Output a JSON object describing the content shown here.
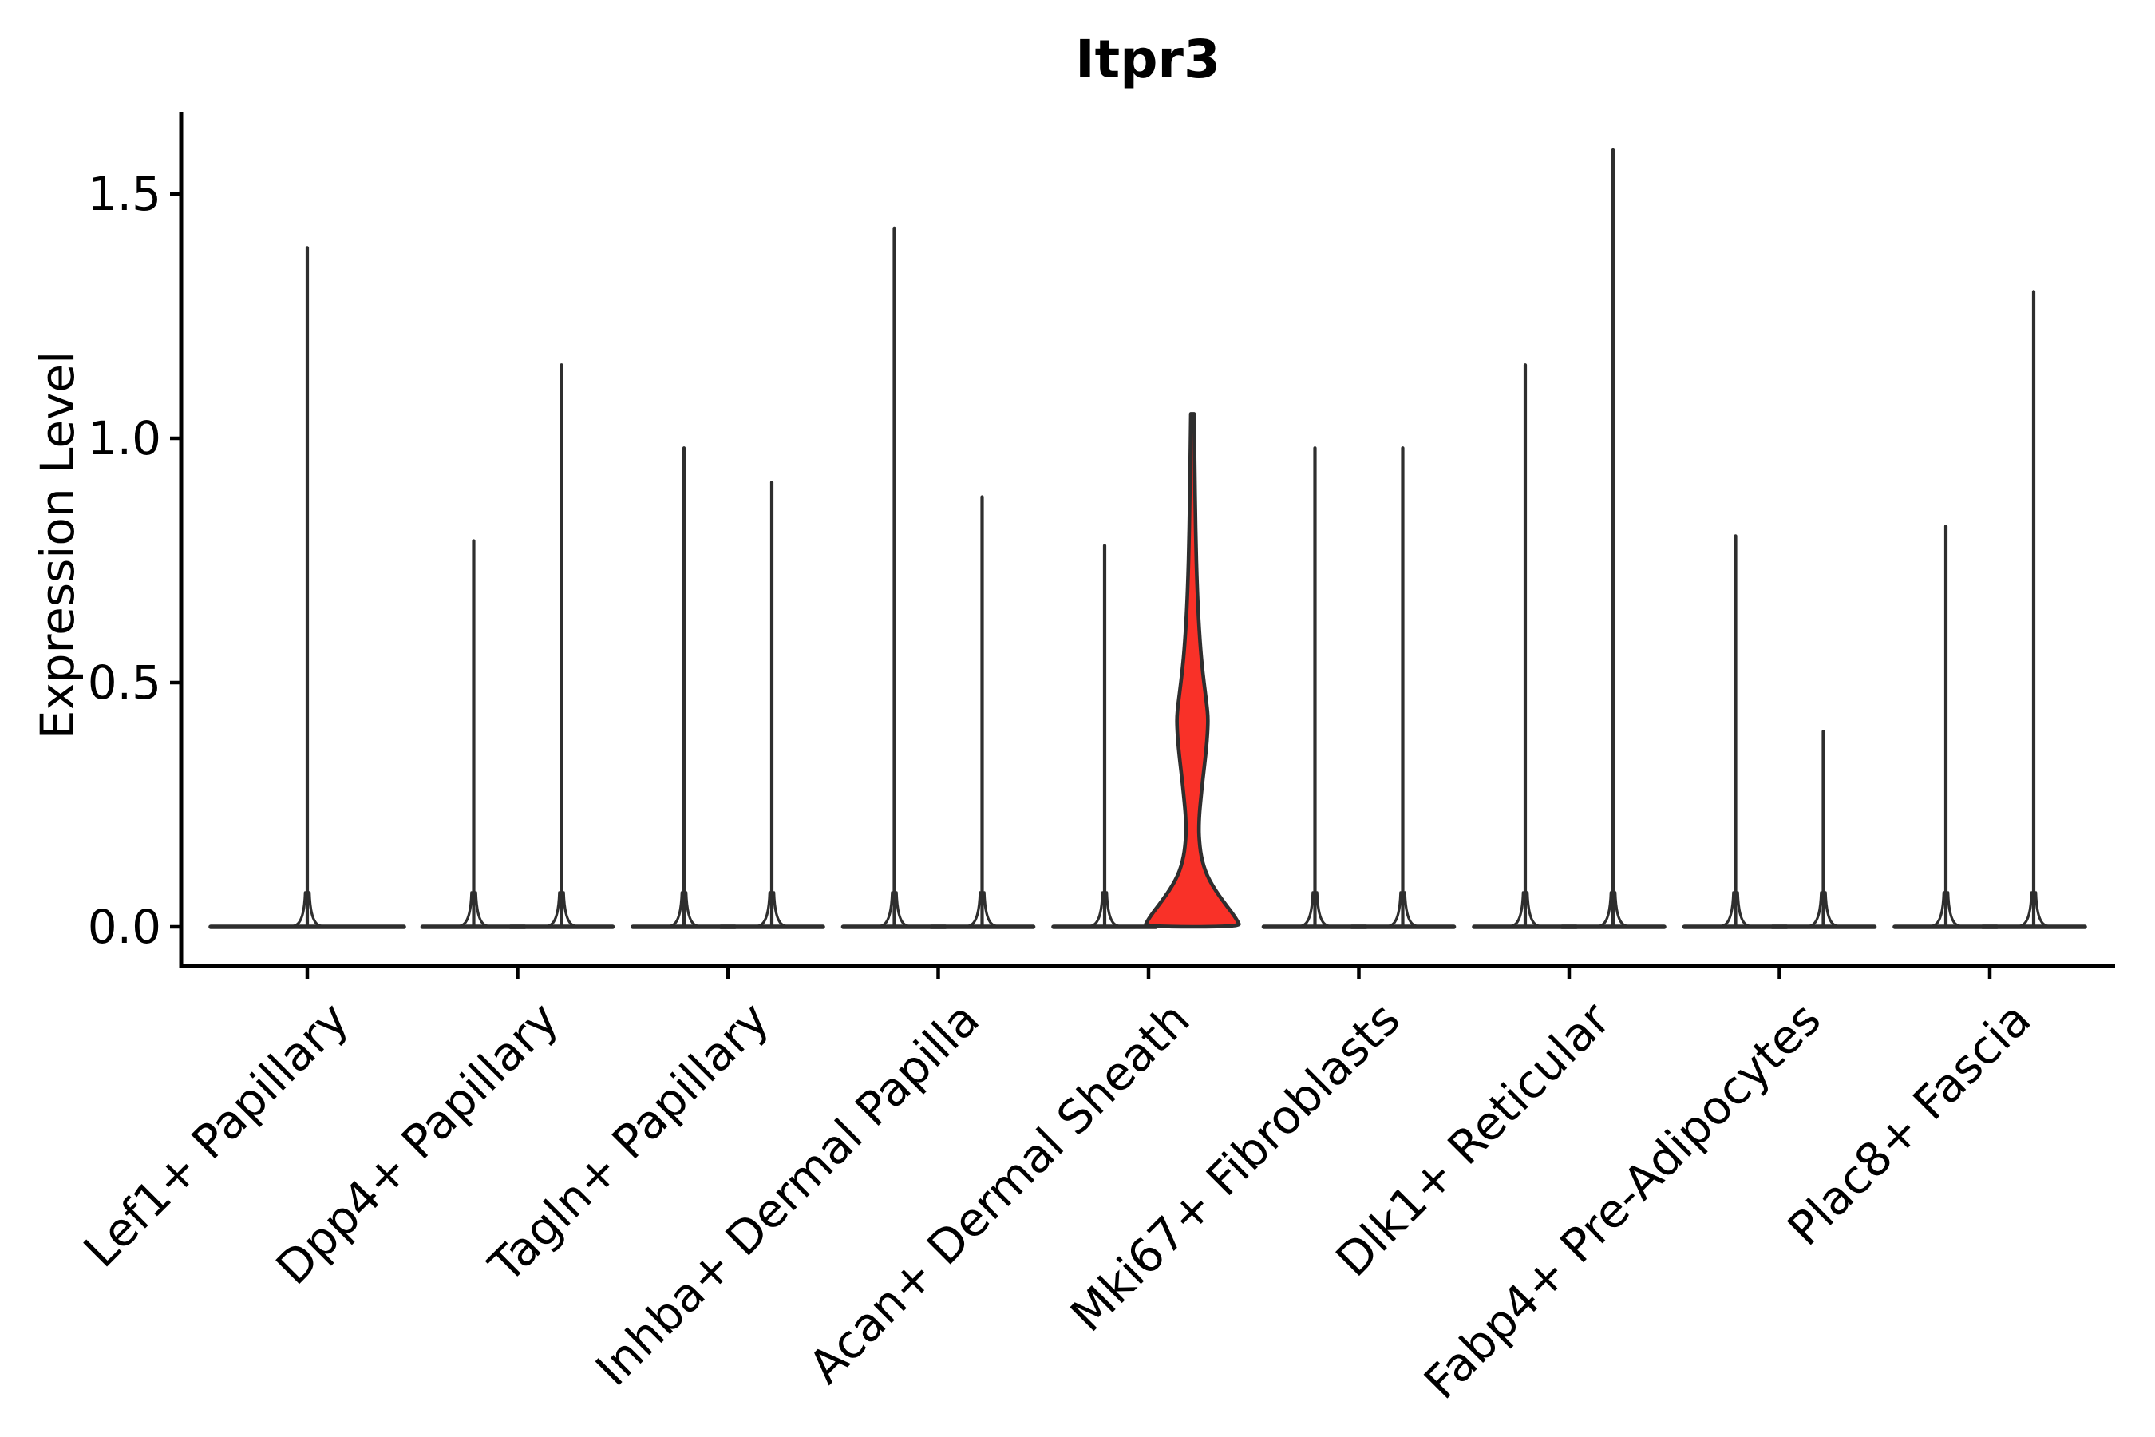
{
  "figure": {
    "title": "Itpr3"
  },
  "axes": {
    "ylabel": "Expression Level",
    "yticks": [
      {
        "label": "0.0",
        "value": 0.0
      },
      {
        "label": "0.5",
        "value": 0.5
      },
      {
        "label": "1.0",
        "value": 1.0
      },
      {
        "label": "1.5",
        "value": 1.5
      }
    ],
    "xlabels": [
      "Lef1+ Papillary",
      "Dpp4+ Papillary",
      "Tagln+ Papillary",
      "Inhba+ Dermal Papilla",
      "Acan+ Dermal Sheath",
      "Mki67+ Fibroblasts",
      "Dlk1+ Reticular",
      "Fabp4+ Pre-Adipocytes",
      "Plac8+ Fascia"
    ]
  },
  "colors": {
    "highlight_fill": "#f93128",
    "violin_line": "#2e2e2e",
    "axis": "#000000",
    "background": "#ffffff"
  },
  "chart_data": {
    "type": "violin",
    "title": "Itpr3",
    "xlabel": "",
    "ylabel": "Expression Level",
    "ylim": [
      0,
      1.67
    ],
    "ytick_values": [
      0,
      0.5,
      1.0,
      1.5
    ],
    "grid": false,
    "legend": "none",
    "categories": [
      "Lef1+ Papillary",
      "Dpp4+ Papillary",
      "Tagln+ Papillary",
      "Inhba+ Dermal Papilla",
      "Acan+ Dermal Sheath",
      "Mki67+ Fibroblasts",
      "Dlk1+ Reticular",
      "Fabp4+ Pre-Adipocytes",
      "Plac8+ Fascia"
    ],
    "violins": [
      {
        "category": "Lef1+ Papillary",
        "parts": [
          {
            "position": "center",
            "max_expression": 1.39,
            "highlight": false
          }
        ]
      },
      {
        "category": "Dpp4+ Papillary",
        "parts": [
          {
            "position": "left",
            "max_expression": 0.79,
            "highlight": false
          },
          {
            "position": "right",
            "max_expression": 1.15,
            "highlight": false
          }
        ]
      },
      {
        "category": "Tagln+ Papillary",
        "parts": [
          {
            "position": "left",
            "max_expression": 0.98,
            "highlight": false
          },
          {
            "position": "right",
            "max_expression": 0.91,
            "highlight": false
          }
        ]
      },
      {
        "category": "Inhba+ Dermal Papilla",
        "parts": [
          {
            "position": "left",
            "max_expression": 1.43,
            "highlight": false
          },
          {
            "position": "right",
            "max_expression": 0.88,
            "highlight": false
          }
        ]
      },
      {
        "category": "Acan+ Dermal Sheath",
        "parts": [
          {
            "position": "left",
            "max_expression": 0.78,
            "highlight": false
          },
          {
            "position": "right",
            "max_expression": 1.05,
            "highlight": true,
            "fill": "#f93128",
            "profile_value_halfwidth": [
              [
                1.05,
                2.0
              ],
              [
                0.99,
                2.5
              ],
              [
                0.92,
                3.0
              ],
              [
                0.85,
                3.6
              ],
              [
                0.78,
                4.4
              ],
              [
                0.72,
                5.4
              ],
              [
                0.66,
                6.8
              ],
              [
                0.61,
                8.4
              ],
              [
                0.56,
                10.6
              ],
              [
                0.52,
                13.0
              ],
              [
                0.48,
                16.0
              ],
              [
                0.45,
                18.3
              ],
              [
                0.43,
                19.4
              ],
              [
                0.41,
                19.3
              ],
              [
                0.38,
                18.2
              ],
              [
                0.35,
                16.4
              ],
              [
                0.32,
                14.3
              ],
              [
                0.29,
                12.2
              ],
              [
                0.26,
                10.4
              ],
              [
                0.24,
                9.2
              ],
              [
                0.22,
                8.4
              ],
              [
                0.2,
                8.1
              ],
              [
                0.185,
                8.3
              ],
              [
                0.165,
                9.3
              ],
              [
                0.145,
                11.0
              ],
              [
                0.125,
                14.0
              ],
              [
                0.105,
                18.5
              ],
              [
                0.085,
                25.0
              ],
              [
                0.065,
                33.0
              ],
              [
                0.045,
                42.0
              ],
              [
                0.028,
                50.0
              ],
              [
                0.012,
                56.5
              ],
              [
                0.0,
                60.0
              ]
            ]
          }
        ]
      },
      {
        "category": "Mki67+ Fibroblasts",
        "parts": [
          {
            "position": "left",
            "max_expression": 0.98,
            "highlight": false
          },
          {
            "position": "right",
            "max_expression": 0.98,
            "highlight": false
          }
        ]
      },
      {
        "category": "Dlk1+ Reticular",
        "parts": [
          {
            "position": "left",
            "max_expression": 1.15,
            "highlight": false
          },
          {
            "position": "right",
            "max_expression": 1.59,
            "highlight": false
          }
        ]
      },
      {
        "category": "Fabp4+ Pre-Adipocytes",
        "parts": [
          {
            "position": "left",
            "max_expression": 0.8,
            "highlight": false
          },
          {
            "position": "right",
            "max_expression": 0.4,
            "highlight": false
          }
        ]
      },
      {
        "category": "Plac8+ Fascia",
        "parts": [
          {
            "position": "left",
            "max_expression": 0.82,
            "highlight": false
          },
          {
            "position": "right",
            "max_expression": 1.3,
            "highlight": false
          }
        ]
      }
    ]
  }
}
